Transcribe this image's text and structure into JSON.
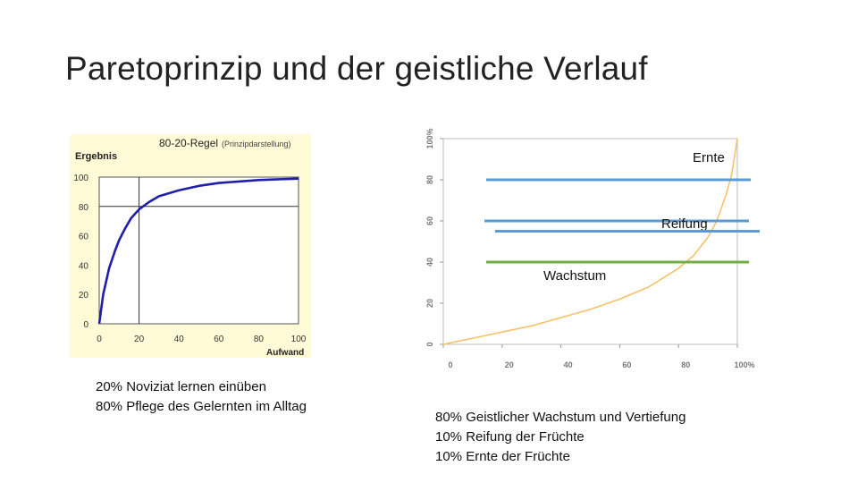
{
  "slide": {
    "title": "Paretoprinzip und der geistliche Verlauf"
  },
  "chart_data": [
    {
      "type": "line",
      "title": "80-20-Regel",
      "subtitle": "(Prinzipdarstellung)",
      "xlabel": "Aufwand",
      "ylabel": "Ergebnis",
      "xlim": [
        0,
        100
      ],
      "ylim": [
        0,
        100
      ],
      "x_ticks": [
        "0",
        "20",
        "40",
        "60",
        "80",
        "100"
      ],
      "y_ticks": [
        "0",
        "20",
        "40",
        "60",
        "80",
        "100"
      ],
      "reference_lines": [
        {
          "x": 20,
          "y": 80
        }
      ],
      "series": [
        {
          "x": [
            0,
            2,
            5,
            8,
            10,
            13,
            16,
            20,
            25,
            30,
            40,
            50,
            60,
            70,
            80,
            90,
            100
          ],
          "values": [
            0,
            20,
            38,
            50,
            57,
            65,
            72,
            78,
            83,
            87,
            91,
            94,
            96,
            97,
            98,
            98.5,
            99
          ],
          "color": "#1f1fa8"
        }
      ]
    },
    {
      "type": "line",
      "xlim": [
        0,
        100
      ],
      "ylim": [
        0,
        100
      ],
      "x_ticks": [
        "0",
        "20",
        "40",
        "60",
        "80",
        "100%"
      ],
      "y_ticks": [
        "0",
        "20",
        "40",
        "60",
        "80",
        "100%"
      ],
      "series": [
        {
          "x": [
            0,
            10,
            20,
            30,
            40,
            50,
            60,
            70,
            80,
            85,
            90,
            93,
            96,
            98,
            100
          ],
          "values": [
            0,
            3,
            6,
            9,
            13,
            17,
            22,
            28,
            37,
            43,
            52,
            60,
            72,
            82,
            100
          ],
          "color": "#f5c26b"
        }
      ],
      "bands": [
        {
          "label": "Ernte",
          "y": 80,
          "color": "#5b9bd5"
        },
        {
          "label": "Reifung",
          "y": 60,
          "color": "#5b9bd5"
        },
        {
          "label": "",
          "y": 55,
          "color": "#5b9bd5"
        },
        {
          "label": "Wachstum",
          "y": 40,
          "color": "#70ad47"
        }
      ]
    }
  ],
  "captions": {
    "left": [
      "20% Noviziat lernen einüben",
      "80% Pflege des Gelernten im Alltag"
    ],
    "right": [
      "80% Geistlicher Wachstum und Vertiefung",
      "10% Reifung der Früchte",
      "10% Ernte der Früchte"
    ]
  }
}
